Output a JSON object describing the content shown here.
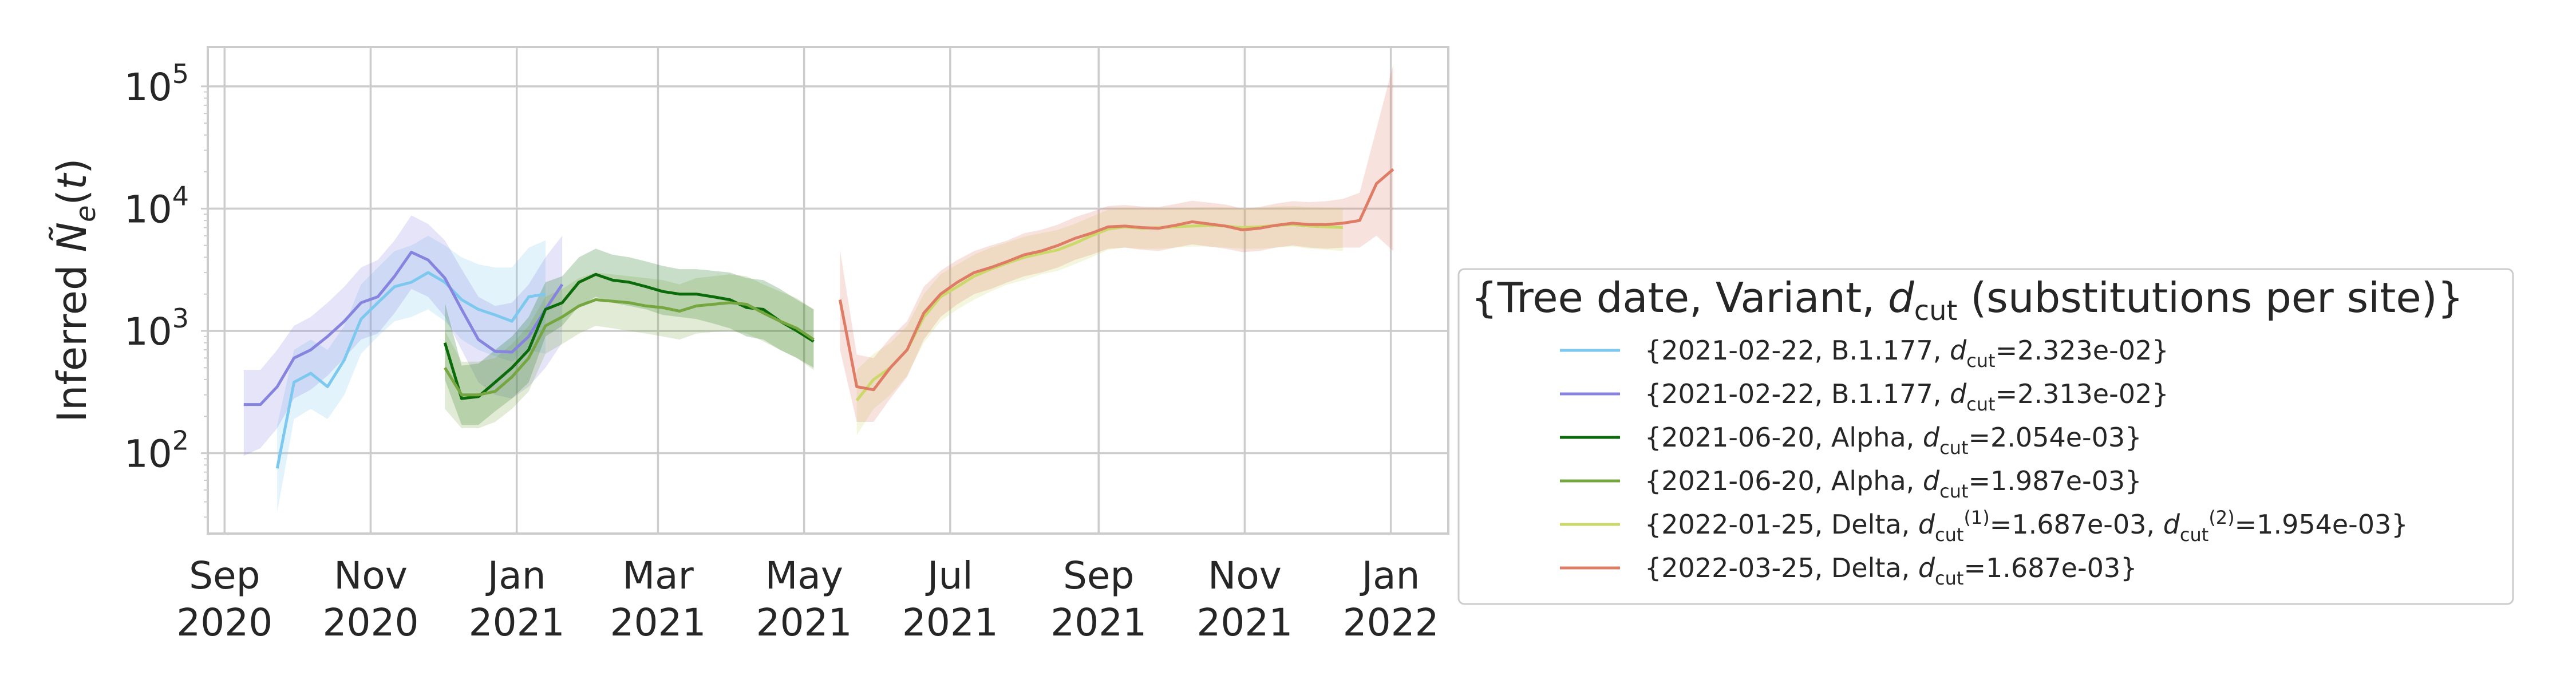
{
  "chart_data": {
    "type": "line",
    "xlabel": "",
    "ylabel": "Inferred Ñ_e(t)",
    "yscale": "log",
    "ylim": [
      22,
      210000
    ],
    "xlim": [
      "2020-08-25",
      "2022-01-25"
    ],
    "grid": true,
    "x_ticks": [
      {
        "date": "2020-09-01",
        "line1": "Sep",
        "line2": "2020"
      },
      {
        "date": "2020-11-01",
        "line1": "Nov",
        "line2": "2020"
      },
      {
        "date": "2021-01-01",
        "line1": "Jan",
        "line2": "2021"
      },
      {
        "date": "2021-03-01",
        "line1": "Mar",
        "line2": "2021"
      },
      {
        "date": "2021-05-01",
        "line1": "May",
        "line2": "2021"
      },
      {
        "date": "2021-07-01",
        "line1": "Jul",
        "line2": "2021"
      },
      {
        "date": "2021-09-01",
        "line1": "Sep",
        "line2": "2021"
      },
      {
        "date": "2021-11-01",
        "line1": "Nov",
        "line2": "2021"
      },
      {
        "date": "2022-01-01",
        "line1": "Jan",
        "line2": "2022"
      }
    ],
    "y_ticks": [
      {
        "value": 100,
        "base": "10",
        "exp": "2"
      },
      {
        "value": 1000,
        "base": "10",
        "exp": "3"
      },
      {
        "value": 10000,
        "base": "10",
        "exp": "4"
      },
      {
        "value": 100000,
        "base": "10",
        "exp": "5"
      }
    ],
    "legend": {
      "placement": "right",
      "title_prefix": "{Tree date, Variant, ",
      "title_symbol": "d",
      "title_sub": "cut",
      "title_suffix": " (substitutions per site)}"
    },
    "series": [
      {
        "color": "#7cc8ee",
        "legend": [
          {
            "t": "{2021-02-22, B.1.177, "
          },
          {
            "t": "d",
            "i": true
          },
          {
            "t": "cut",
            "sub": true
          },
          {
            "t": "=2.323e-02}"
          }
        ],
        "points": [
          [
            "2020-09-23",
            75
          ],
          [
            "2020-09-30",
            380
          ],
          [
            "2020-10-07",
            450
          ],
          [
            "2020-10-14",
            350
          ],
          [
            "2020-10-21",
            580
          ],
          [
            "2020-10-28",
            1250
          ],
          [
            "2020-11-04",
            1700
          ],
          [
            "2020-11-11",
            2300
          ],
          [
            "2020-11-18",
            2500
          ],
          [
            "2020-11-25",
            3000
          ],
          [
            "2020-12-02",
            2500
          ],
          [
            "2020-12-09",
            1800
          ],
          [
            "2020-12-16",
            1500
          ],
          [
            "2020-12-23",
            1350
          ],
          [
            "2020-12-30",
            1200
          ],
          [
            "2021-01-06",
            1900
          ],
          [
            "2021-01-13",
            2000
          ]
        ],
        "lower": [
          33,
          190,
          230,
          190,
          300,
          650,
          900,
          1200,
          1300,
          1500,
          1200,
          850,
          700,
          620,
          560,
          700,
          650
        ],
        "upper": [
          170,
          700,
          850,
          700,
          1100,
          2400,
          3300,
          4500,
          5000,
          6000,
          5000,
          4000,
          3500,
          3300,
          3300,
          4800,
          5500
        ]
      },
      {
        "color": "#8784e0",
        "legend": [
          {
            "t": "{2021-02-22, B.1.177, "
          },
          {
            "t": "d",
            "i": true
          },
          {
            "t": "cut",
            "sub": true
          },
          {
            "t": "=2.313e-02}"
          }
        ],
        "points": [
          [
            "2020-09-09",
            250
          ],
          [
            "2020-09-16",
            250
          ],
          [
            "2020-09-23",
            350
          ],
          [
            "2020-09-30",
            600
          ],
          [
            "2020-10-07",
            700
          ],
          [
            "2020-10-14",
            900
          ],
          [
            "2020-10-21",
            1200
          ],
          [
            "2020-10-28",
            1700
          ],
          [
            "2020-11-04",
            1900
          ],
          [
            "2020-11-11",
            2800
          ],
          [
            "2020-11-18",
            4400
          ],
          [
            "2020-11-25",
            3800
          ],
          [
            "2020-12-02",
            2700
          ],
          [
            "2020-12-09",
            1500
          ],
          [
            "2020-12-16",
            850
          ],
          [
            "2020-12-23",
            680
          ],
          [
            "2020-12-30",
            670
          ],
          [
            "2021-01-06",
            900
          ],
          [
            "2021-01-13",
            1500
          ],
          [
            "2021-01-20",
            2400
          ]
        ],
        "lower": [
          95,
          110,
          160,
          280,
          330,
          430,
          600,
          850,
          950,
          1400,
          2200,
          1900,
          1300,
          700,
          380,
          300,
          280,
          350,
          500,
          800
        ],
        "upper": [
          480,
          480,
          700,
          1100,
          1300,
          1700,
          2300,
          3300,
          3800,
          5500,
          8800,
          7500,
          5500,
          3200,
          1900,
          1600,
          1700,
          2400,
          4000,
          6000
        ]
      },
      {
        "color": "#0b6b0b",
        "legend": [
          {
            "t": "{2021-06-20, Alpha, "
          },
          {
            "t": "d",
            "i": true
          },
          {
            "t": "cut",
            "sub": true
          },
          {
            "t": "=2.054e-03}"
          }
        ],
        "points": [
          [
            "2020-12-02",
            800
          ],
          [
            "2020-12-09",
            280
          ],
          [
            "2020-12-16",
            290
          ],
          [
            "2020-12-23",
            380
          ],
          [
            "2020-12-30",
            500
          ],
          [
            "2021-01-06",
            700
          ],
          [
            "2021-01-13",
            1500
          ],
          [
            "2021-01-20",
            1700
          ],
          [
            "2021-01-27",
            2500
          ],
          [
            "2021-02-03",
            2900
          ],
          [
            "2021-02-10",
            2600
          ],
          [
            "2021-02-17",
            2500
          ],
          [
            "2021-02-24",
            2300
          ],
          [
            "2021-03-03",
            2100
          ],
          [
            "2021-03-10",
            2000
          ],
          [
            "2021-03-17",
            2000
          ],
          [
            "2021-03-24",
            1900
          ],
          [
            "2021-03-31",
            1800
          ],
          [
            "2021-04-07",
            1550
          ],
          [
            "2021-04-14",
            1500
          ],
          [
            "2021-04-21",
            1200
          ],
          [
            "2021-04-28",
            1000
          ],
          [
            "2021-05-05",
            820
          ]
        ],
        "lower": [
          400,
          170,
          170,
          220,
          280,
          380,
          900,
          1100,
          1600,
          1900,
          1700,
          1600,
          1500,
          1350,
          1300,
          1250,
          1150,
          1050,
          900,
          850,
          700,
          600,
          500
        ],
        "upper": [
          1700,
          520,
          540,
          700,
          900,
          1300,
          2500,
          2800,
          4000,
          4700,
          4200,
          4000,
          3700,
          3400,
          3200,
          3200,
          3100,
          3000,
          2700,
          2600,
          2200,
          1800,
          1500
        ]
      },
      {
        "color": "#75a640",
        "legend": [
          {
            "t": "{2021-06-20, Alpha, "
          },
          {
            "t": "d",
            "i": true
          },
          {
            "t": "cut",
            "sub": true
          },
          {
            "t": "=1.987e-03}"
          }
        ],
        "points": [
          [
            "2020-12-02",
            500
          ],
          [
            "2020-12-09",
            300
          ],
          [
            "2020-12-16",
            300
          ],
          [
            "2020-12-23",
            320
          ],
          [
            "2020-12-30",
            420
          ],
          [
            "2021-01-06",
            600
          ],
          [
            "2021-01-13",
            1100
          ],
          [
            "2021-01-20",
            1300
          ],
          [
            "2021-01-27",
            1600
          ],
          [
            "2021-02-03",
            1800
          ],
          [
            "2021-02-10",
            1750
          ],
          [
            "2021-02-17",
            1700
          ],
          [
            "2021-02-24",
            1600
          ],
          [
            "2021-03-03",
            1550
          ],
          [
            "2021-03-10",
            1450
          ],
          [
            "2021-03-17",
            1600
          ],
          [
            "2021-03-24",
            1650
          ],
          [
            "2021-03-31",
            1700
          ],
          [
            "2021-04-07",
            1650
          ],
          [
            "2021-04-14",
            1400
          ],
          [
            "2021-04-21",
            1200
          ],
          [
            "2021-04-28",
            1050
          ],
          [
            "2021-05-05",
            850
          ]
        ],
        "lower": [
          230,
          160,
          160,
          180,
          230,
          320,
          650,
          780,
          950,
          1100,
          1050,
          1000,
          950,
          900,
          850,
          950,
          980,
          1000,
          950,
          820,
          700,
          600,
          480
        ],
        "upper": [
          1000,
          560,
          560,
          600,
          780,
          1100,
          1900,
          2200,
          2700,
          3000,
          2900,
          2800,
          2700,
          2600,
          2400,
          2700,
          2800,
          2900,
          2800,
          2400,
          2100,
          1850,
          1500
        ]
      },
      {
        "color": "#cbd96a",
        "legend": [
          {
            "t": "{2022-01-25, Delta, "
          },
          {
            "t": "d",
            "i": true
          },
          {
            "t": "cut",
            "sub": true
          },
          {
            "t": "(1)",
            "sup": true
          },
          {
            "t": "=1.687e-03, "
          },
          {
            "t": "d",
            "i": true
          },
          {
            "t": "cut",
            "sub": true
          },
          {
            "t": "(2)",
            "sup": true
          },
          {
            "t": "=1.954e-03}"
          }
        ],
        "points": [
          [
            "2021-05-23",
            270
          ],
          [
            "2021-05-30",
            400
          ],
          [
            "2021-06-06",
            500
          ],
          [
            "2021-06-13",
            700
          ],
          [
            "2021-06-20",
            1300
          ],
          [
            "2021-06-27",
            1900
          ],
          [
            "2021-07-04",
            2300
          ],
          [
            "2021-07-11",
            2800
          ],
          [
            "2021-07-18",
            3200
          ],
          [
            "2021-07-25",
            3600
          ],
          [
            "2021-08-01",
            4000
          ],
          [
            "2021-08-08",
            4300
          ],
          [
            "2021-08-15",
            4600
          ],
          [
            "2021-08-22",
            5200
          ],
          [
            "2021-08-29",
            6000
          ],
          [
            "2021-09-05",
            6800
          ],
          [
            "2021-09-12",
            7100
          ],
          [
            "2021-09-19",
            6900
          ],
          [
            "2021-09-26",
            7000
          ],
          [
            "2021-10-03",
            7100
          ],
          [
            "2021-10-10",
            7200
          ],
          [
            "2021-10-17",
            7300
          ],
          [
            "2021-10-24",
            7200
          ],
          [
            "2021-10-31",
            7000
          ],
          [
            "2021-11-07",
            7100
          ],
          [
            "2021-11-14",
            7300
          ],
          [
            "2021-11-21",
            7400
          ],
          [
            "2021-11-28",
            7200
          ],
          [
            "2021-12-05",
            7100
          ],
          [
            "2021-12-12",
            7000
          ]
        ],
        "lower": [
          140,
          230,
          300,
          430,
          800,
          1200,
          1500,
          1800,
          2100,
          2400,
          2600,
          2900,
          3100,
          3500,
          4000,
          4600,
          4800,
          4700,
          4700,
          4800,
          4900,
          4900,
          4800,
          4700,
          4700,
          4800,
          4900,
          4700,
          4600,
          4500
        ],
        "upper": [
          480,
          650,
          800,
          1100,
          2000,
          2900,
          3500,
          4200,
          4800,
          5300,
          5900,
          6300,
          6700,
          7500,
          8600,
          9800,
          10200,
          9900,
          10000,
          10100,
          10200,
          10300,
          10200,
          10000,
          10100,
          10400,
          10500,
          10300,
          10200,
          10100
        ]
      },
      {
        "color": "#df7c66",
        "legend": [
          {
            "t": "{2022-03-25, Delta, "
          },
          {
            "t": "d",
            "i": true
          },
          {
            "t": "cut",
            "sub": true
          },
          {
            "t": "=1.687e-03}"
          }
        ],
        "points": [
          [
            "2021-05-16",
            1800
          ],
          [
            "2021-05-23",
            350
          ],
          [
            "2021-05-30",
            330
          ],
          [
            "2021-06-06",
            500
          ],
          [
            "2021-06-13",
            700
          ],
          [
            "2021-06-20",
            1400
          ],
          [
            "2021-06-27",
            2000
          ],
          [
            "2021-07-04",
            2500
          ],
          [
            "2021-07-11",
            3000
          ],
          [
            "2021-07-18",
            3300
          ],
          [
            "2021-07-25",
            3700
          ],
          [
            "2021-08-01",
            4200
          ],
          [
            "2021-08-08",
            4500
          ],
          [
            "2021-08-15",
            5000
          ],
          [
            "2021-08-22",
            5700
          ],
          [
            "2021-08-29",
            6300
          ],
          [
            "2021-09-05",
            7100
          ],
          [
            "2021-09-12",
            7200
          ],
          [
            "2021-09-19",
            7000
          ],
          [
            "2021-09-26",
            6900
          ],
          [
            "2021-10-03",
            7300
          ],
          [
            "2021-10-10",
            7800
          ],
          [
            "2021-10-17",
            7500
          ],
          [
            "2021-10-24",
            7200
          ],
          [
            "2021-10-31",
            6700
          ],
          [
            "2021-11-07",
            6900
          ],
          [
            "2021-11-14",
            7300
          ],
          [
            "2021-11-21",
            7600
          ],
          [
            "2021-11-28",
            7400
          ],
          [
            "2021-12-05",
            7400
          ],
          [
            "2021-12-12",
            7600
          ],
          [
            "2021-12-19",
            8000
          ],
          [
            "2021-12-26",
            16000
          ],
          [
            "2022-01-02",
            21000
          ]
        ],
        "lower": [
          700,
          180,
          180,
          280,
          420,
          850,
          1300,
          1650,
          2000,
          2200,
          2500,
          2800,
          3000,
          3300,
          3800,
          4200,
          4700,
          4800,
          4600,
          4500,
          4800,
          5100,
          4900,
          4700,
          4400,
          4500,
          4800,
          5000,
          4800,
          4700,
          4800,
          4800,
          6000,
          4500
        ],
        "upper": [
          4600,
          640,
          600,
          880,
          1200,
          2300,
          3100,
          3800,
          4500,
          5000,
          5500,
          6300,
          6700,
          7400,
          8500,
          9400,
          10500,
          10700,
          10400,
          10300,
          10900,
          11600,
          11200,
          10800,
          10000,
          10300,
          11000,
          11500,
          11300,
          11500,
          12000,
          13500,
          45000,
          150000
        ]
      }
    ]
  }
}
